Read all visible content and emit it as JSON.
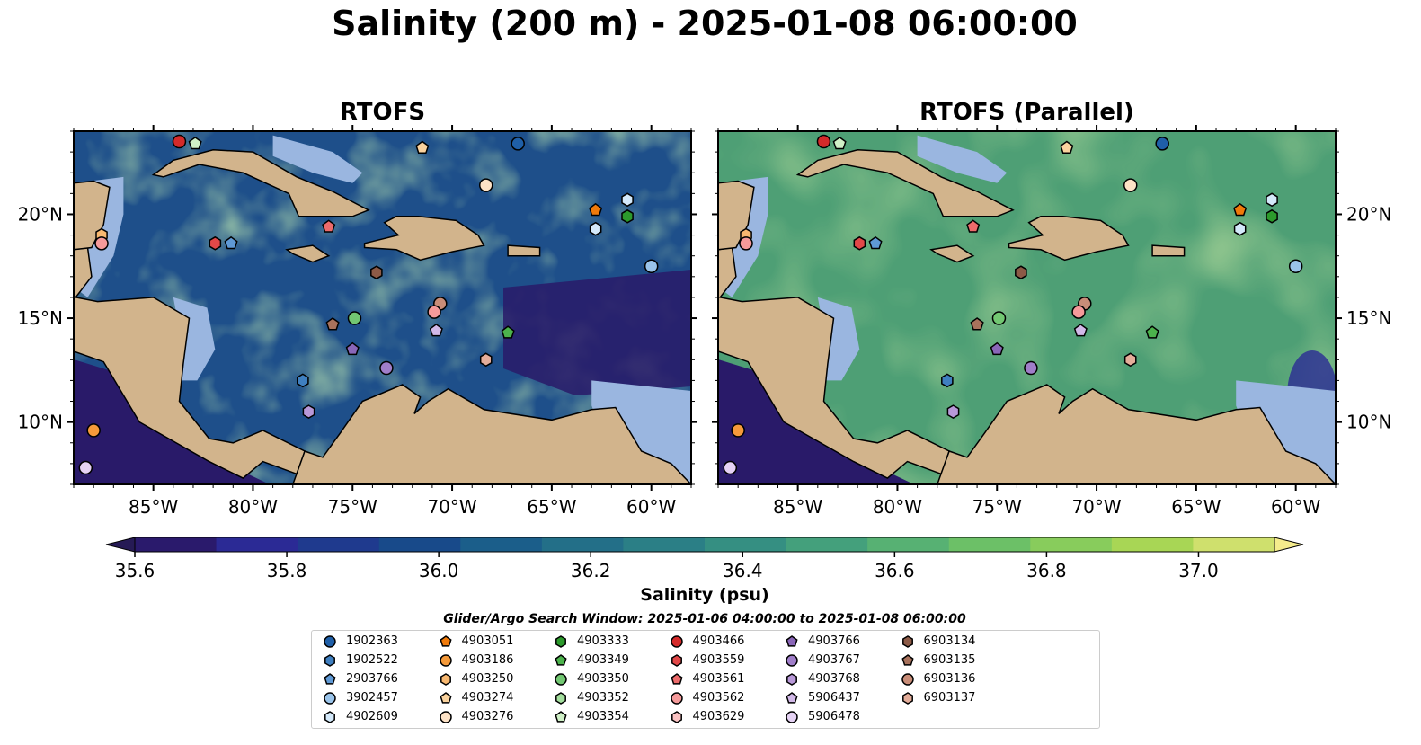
{
  "title": "Salinity (200 m) - 2025-01-08 06:00:00",
  "panels": [
    {
      "title": "RTOFS"
    },
    {
      "title": "RTOFS (Parallel)"
    }
  ],
  "map_extent": {
    "lon": [
      -89,
      -58
    ],
    "lat": [
      7,
      24
    ]
  },
  "axis_labels": {
    "lon": [
      "85°W",
      "80°W",
      "75°W",
      "70°W",
      "65°W",
      "60°W"
    ],
    "lat": [
      "20°N",
      "15°N",
      "10°N"
    ]
  },
  "colorbar": {
    "label": "Salinity (psu)",
    "min": 35.6,
    "max": 37.0,
    "extend": "both",
    "ticks": [
      "35.6",
      "35.8",
      "36.0",
      "36.2",
      "36.4",
      "36.6",
      "36.8",
      "37.0"
    ],
    "colors": [
      "#2a1a6c",
      "#2b2a95",
      "#1f3a8e",
      "#184a8a",
      "#1b5e8a",
      "#236f88",
      "#2b7f86",
      "#358f82",
      "#44a07c",
      "#57b173",
      "#6cc067",
      "#88cc5c",
      "#a8d655",
      "#cfe06d"
    ],
    "under_color": "#261a55",
    "over_color": "#f5ec8c"
  },
  "colors": {
    "land": "#d2b48c",
    "shelf": "#9ab6e0",
    "deep_low": "#291a69",
    "field_rtofs": "#1e4f8a",
    "field_parallel": "#5fae6c"
  },
  "search_window": "Glider/Argo Search Window: 2025-01-06 04:00:00 to 2025-01-08 06:00:00",
  "legend": [
    {
      "id": "1902363",
      "marker": "circle",
      "color": "#1f5fa8"
    },
    {
      "id": "1902522",
      "marker": "hexagon",
      "color": "#3f7fc0"
    },
    {
      "id": "2903766",
      "marker": "pentagon",
      "color": "#5f99d5"
    },
    {
      "id": "3902457",
      "marker": "circle",
      "color": "#9ac4ea"
    },
    {
      "id": "4902609",
      "marker": "hexagon",
      "color": "#d4e9fa"
    },
    {
      "id": "4903051",
      "marker": "pentagon",
      "color": "#f07a0a"
    },
    {
      "id": "4903186",
      "marker": "circle",
      "color": "#f59a3a"
    },
    {
      "id": "4903250",
      "marker": "hexagon",
      "color": "#f8b870"
    },
    {
      "id": "4903274",
      "marker": "pentagon",
      "color": "#fbd39e"
    },
    {
      "id": "4903276",
      "marker": "circle",
      "color": "#fde2c6"
    },
    {
      "id": "4903333",
      "marker": "hexagon",
      "color": "#2c9a2c"
    },
    {
      "id": "4903349",
      "marker": "pentagon",
      "color": "#4cb34c"
    },
    {
      "id": "4903350",
      "marker": "circle",
      "color": "#72c772"
    },
    {
      "id": "4903352",
      "marker": "hexagon",
      "color": "#a3de9d"
    },
    {
      "id": "4903354",
      "marker": "pentagon",
      "color": "#d0f1c7"
    },
    {
      "id": "4903466",
      "marker": "circle",
      "color": "#d42a2a"
    },
    {
      "id": "4903559",
      "marker": "hexagon",
      "color": "#e24848"
    },
    {
      "id": "4903561",
      "marker": "pentagon",
      "color": "#ed6b6b"
    },
    {
      "id": "4903562",
      "marker": "circle",
      "color": "#f59a9a"
    },
    {
      "id": "4903629",
      "marker": "hexagon",
      "color": "#fbc3c3"
    },
    {
      "id": "4903766",
      "marker": "pentagon",
      "color": "#8a66b8"
    },
    {
      "id": "4903767",
      "marker": "circle",
      "color": "#a07ec9"
    },
    {
      "id": "4903768",
      "marker": "hexagon",
      "color": "#b898d8"
    },
    {
      "id": "5906437",
      "marker": "pentagon",
      "color": "#d2b9e8"
    },
    {
      "id": "5906478",
      "marker": "circle",
      "color": "#e5d2f4"
    },
    {
      "id": "6903134",
      "marker": "hexagon",
      "color": "#8c5a46"
    },
    {
      "id": "6903135",
      "marker": "pentagon",
      "color": "#a8725c"
    },
    {
      "id": "6903136",
      "marker": "circle",
      "color": "#c98d78"
    },
    {
      "id": "6903137",
      "marker": "hexagon",
      "color": "#e4ad9a"
    }
  ],
  "platforms": [
    {
      "id": "4903466",
      "lon": -83.7,
      "lat": 23.5
    },
    {
      "id": "4903354",
      "lon": -82.9,
      "lat": 23.4
    },
    {
      "id": "4903274",
      "lon": -71.5,
      "lat": 23.2
    },
    {
      "id": "1902363",
      "lon": -66.7,
      "lat": 23.4
    },
    {
      "id": "4903276",
      "lon": -68.3,
      "lat": 21.4
    },
    {
      "id": "4902609",
      "lon": -61.2,
      "lat": 20.7
    },
    {
      "id": "4903051",
      "lon": -62.8,
      "lat": 20.2
    },
    {
      "id": "4903333",
      "lon": -61.2,
      "lat": 19.9
    },
    {
      "id": "4902609",
      "lon": -62.8,
      "lat": 19.3
    },
    {
      "id": "4903250",
      "lon": -87.6,
      "lat": 19.0
    },
    {
      "id": "4903562",
      "lon": -87.6,
      "lat": 18.6
    },
    {
      "id": "4903559",
      "lon": -81.9,
      "lat": 18.6
    },
    {
      "id": "2903766",
      "lon": -81.1,
      "lat": 18.6
    },
    {
      "id": "4903561",
      "lon": -76.2,
      "lat": 19.4
    },
    {
      "id": "3902457",
      "lon": -60.0,
      "lat": 17.5
    },
    {
      "id": "6903134",
      "lon": -73.8,
      "lat": 17.2
    },
    {
      "id": "6903136",
      "lon": -70.6,
      "lat": 15.7
    },
    {
      "id": "4903562",
      "lon": -70.9,
      "lat": 15.3
    },
    {
      "id": "4903350",
      "lon": -74.9,
      "lat": 15.0
    },
    {
      "id": "6903135",
      "lon": -76.0,
      "lat": 14.7
    },
    {
      "id": "5906437",
      "lon": -70.8,
      "lat": 14.4
    },
    {
      "id": "4903349",
      "lon": -67.2,
      "lat": 14.3
    },
    {
      "id": "4903766",
      "lon": -75.0,
      "lat": 13.5
    },
    {
      "id": "4903767",
      "lon": -73.3,
      "lat": 12.6
    },
    {
      "id": "6903137",
      "lon": -68.3,
      "lat": 13.0
    },
    {
      "id": "1902522",
      "lon": -77.5,
      "lat": 12.0
    },
    {
      "id": "4903768",
      "lon": -77.2,
      "lat": 10.5
    },
    {
      "id": "4903186",
      "lon": -88.0,
      "lat": 9.6
    },
    {
      "id": "5906478",
      "lon": -88.4,
      "lat": 7.8
    }
  ]
}
